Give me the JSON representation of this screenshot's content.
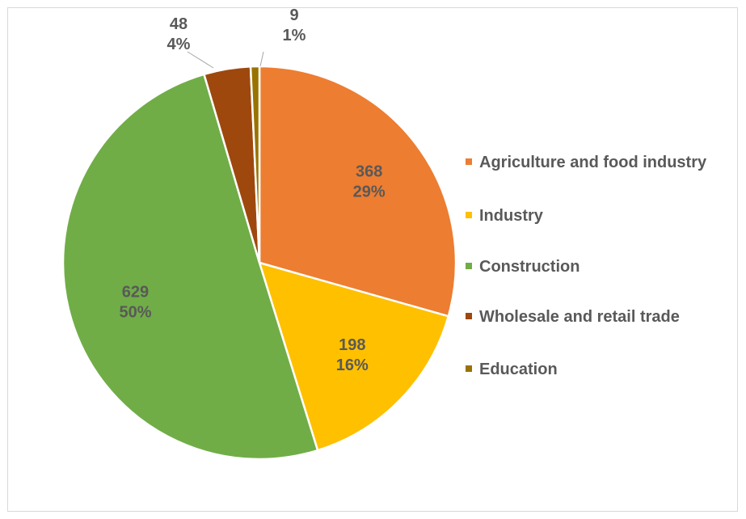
{
  "chart_data": {
    "type": "pie",
    "title": "",
    "slices": [
      {
        "label": "Agriculture and food industry",
        "value": 368,
        "percent": "29%",
        "color": "#ED7D31"
      },
      {
        "label": "Industry",
        "value": 198,
        "percent": "16%",
        "color": "#FFC000"
      },
      {
        "label": "Construction",
        "value": 629,
        "percent": "50%",
        "color": "#70AD47"
      },
      {
        "label": "Wholesale and retail trade",
        "value": 48,
        "percent": "4%",
        "color": "#9E480E"
      },
      {
        "label": "Education",
        "value": 9,
        "percent": "1%",
        "color": "#997300"
      }
    ],
    "legend_position": "right",
    "label_color": "#595959",
    "leader_line_color": "#a6a6a6"
  }
}
